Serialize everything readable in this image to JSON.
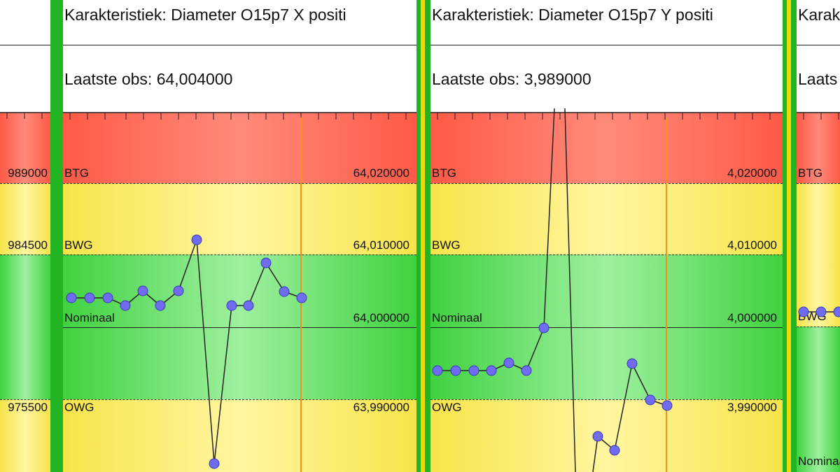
{
  "left_panel": {
    "values": [
      "989000",
      "984500",
      "975500"
    ]
  },
  "panel_x": {
    "title": "Karakteristiek: Diameter O15p7 X positi",
    "last_obs": "Laatste obs: 64,004000",
    "limits": {
      "btg": {
        "label": "BTG",
        "value": "64,020000"
      },
      "bwg": {
        "label": "BWG",
        "value": "64,010000"
      },
      "nominal": {
        "label": "Nominaal",
        "value": "64,000000"
      },
      "owg": {
        "label": "OWG",
        "value": "63,990000"
      }
    }
  },
  "panel_y": {
    "title": "Karakteristiek: Diameter O15p7 Y positi",
    "last_obs": "Laatste obs: 3,989000",
    "limits": {
      "btg": {
        "label": "BTG",
        "value": "4,020000"
      },
      "bwg": {
        "label": "BWG",
        "value": "4,010000"
      },
      "nominal": {
        "label": "Nominaal",
        "value": "4,000000"
      },
      "owg": {
        "label": "OWG",
        "value": "3,990000"
      }
    }
  },
  "right_panel": {
    "title": "Karak",
    "last_obs": "Laats",
    "btg_label": "BTG",
    "bwg_label": "BWG",
    "nominal_label": "Nominaa"
  },
  "colors": {
    "divider_green": "#22b422",
    "divider_yellow": "#f2d70a",
    "point_fill": "#6f6cf0",
    "vertical_marker": "#f5921e",
    "zone_red": "#ff5a47",
    "zone_yellow": "#f7e44a",
    "zone_green": "#3fd23f"
  }
}
